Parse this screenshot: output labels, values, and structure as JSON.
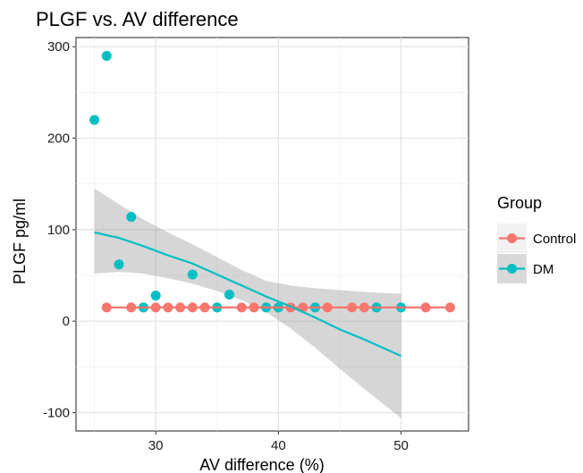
{
  "chart_data": {
    "type": "scatter",
    "title": "PLGF vs. AV difference",
    "xlabel": "AV difference (%)",
    "ylabel": "PLGF pg/ml",
    "xlim": [
      23.5,
      55.5
    ],
    "ylim": [
      -120,
      310
    ],
    "x_ticks": [
      30,
      40,
      50
    ],
    "y_ticks": [
      -100,
      0,
      100,
      200,
      300
    ],
    "grid": true,
    "legend": {
      "title": "Group",
      "position": "right"
    },
    "series": [
      {
        "name": "Control",
        "color": "#F8766D",
        "points": [
          [
            26,
            15
          ],
          [
            28,
            15
          ],
          [
            29,
            15
          ],
          [
            30,
            15
          ],
          [
            31,
            15
          ],
          [
            32,
            15
          ],
          [
            33,
            15
          ],
          [
            34,
            15
          ],
          [
            35,
            15
          ],
          [
            37,
            15
          ],
          [
            38,
            15
          ],
          [
            39,
            15
          ],
          [
            40,
            15
          ],
          [
            41,
            15
          ],
          [
            42,
            15
          ],
          [
            43,
            15
          ],
          [
            44,
            15
          ],
          [
            46,
            15
          ],
          [
            47,
            15
          ],
          [
            48,
            15
          ],
          [
            52,
            15
          ],
          [
            54,
            15
          ]
        ],
        "trend": {
          "x": [
            26,
            54
          ],
          "y": [
            15,
            15
          ]
        }
      },
      {
        "name": "DM",
        "color": "#00BFC4",
        "points": [
          [
            25,
            220
          ],
          [
            26,
            290
          ],
          [
            27,
            62
          ],
          [
            28,
            114
          ],
          [
            29,
            15
          ],
          [
            30,
            28
          ],
          [
            33,
            51
          ],
          [
            35,
            15
          ],
          [
            36,
            29
          ],
          [
            39,
            15
          ],
          [
            40,
            15
          ],
          [
            43,
            15
          ],
          [
            48,
            15
          ],
          [
            50,
            15
          ]
        ],
        "trend": {
          "x": [
            25,
            27,
            29,
            31,
            33,
            35,
            37,
            39,
            41,
            43,
            45,
            47,
            50
          ],
          "y": [
            97,
            91,
            82,
            72,
            63,
            51,
            39,
            27,
            16,
            4,
            -9,
            -20,
            -38
          ],
          "ci_low": [
            52,
            54,
            52,
            47,
            41,
            33,
            23,
            10,
            -8,
            -29,
            -52,
            -74,
            -106
          ],
          "ci_high": [
            145,
            128,
            111,
            97,
            84,
            70,
            56,
            44,
            39,
            36,
            34,
            32,
            30
          ]
        }
      }
    ]
  }
}
